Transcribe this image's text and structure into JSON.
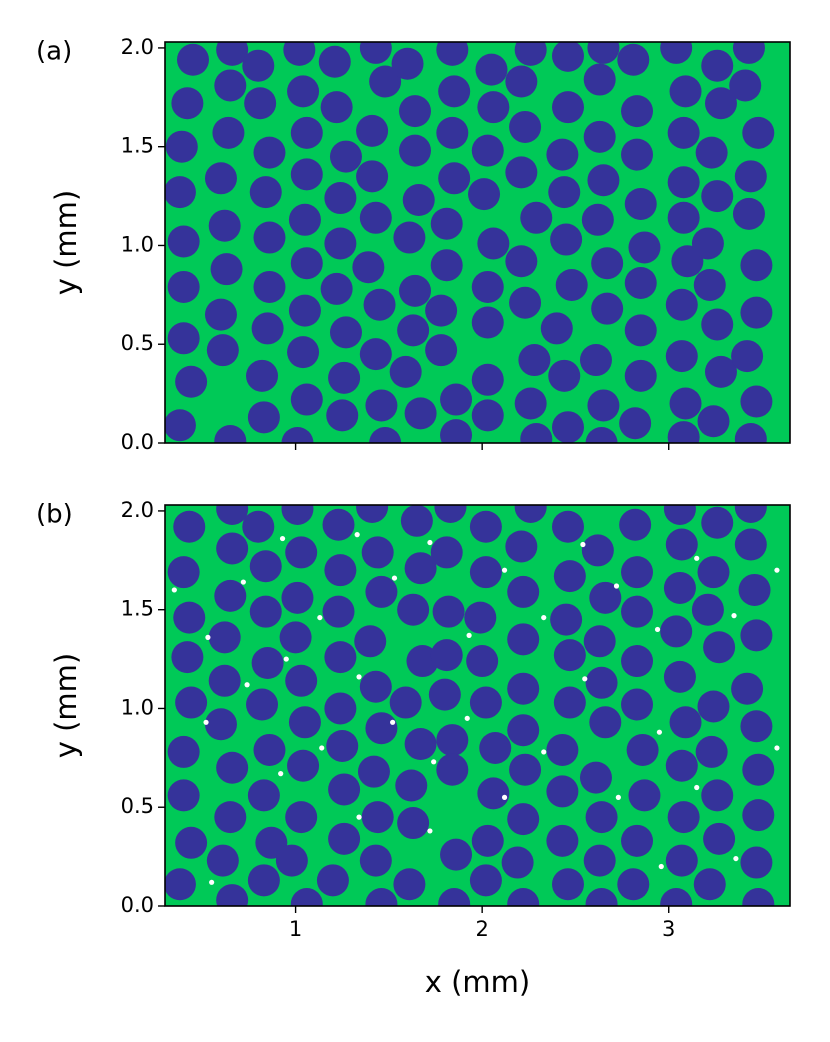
{
  "chart_data": [
    {
      "type": "scatter",
      "panel_label": "(a)",
      "ylabel": "y (mm)",
      "show_xticklabels": false,
      "xlim": [
        0.3,
        3.65
      ],
      "ylim": [
        0,
        2.03
      ],
      "xticks": [
        1,
        2,
        3
      ],
      "yticks": [
        {
          "value": 0,
          "label": "0.0"
        },
        {
          "value": 0.5,
          "label": "0.5"
        },
        {
          "value": 1,
          "label": "1.0"
        },
        {
          "value": 1.5,
          "label": "1.5"
        },
        {
          "value": 2,
          "label": "2.0"
        }
      ],
      "background": "#00c957",
      "series": [
        {
          "color": "#35339a",
          "x": [
            0.45,
            0.42,
            0.39,
            0.38,
            0.4,
            0.4,
            0.4,
            0.44,
            0.38,
            0.66,
            0.65,
            0.64,
            0.6,
            0.62,
            0.63,
            0.6,
            0.61,
            0.65,
            0.8,
            0.81,
            0.86,
            0.84,
            0.86,
            0.86,
            0.85,
            0.82,
            0.83,
            1.02,
            1.04,
            1.06,
            1.06,
            1.05,
            1.06,
            1.05,
            1.04,
            1.06,
            1.01,
            1.21,
            1.22,
            1.27,
            1.24,
            1.24,
            1.22,
            1.27,
            1.26,
            1.25,
            1.43,
            1.48,
            1.41,
            1.41,
            1.43,
            1.39,
            1.45,
            1.43,
            1.46,
            1.48,
            1.6,
            1.64,
            1.64,
            1.66,
            1.61,
            1.64,
            1.63,
            1.59,
            1.67,
            1.84,
            1.85,
            1.84,
            1.85,
            1.81,
            1.81,
            1.78,
            1.78,
            1.86,
            1.86,
            2.05,
            2.06,
            2.03,
            2.01,
            2.06,
            2.03,
            2.03,
            2.03,
            2.03,
            2.26,
            2.21,
            2.23,
            2.21,
            2.29,
            2.21,
            2.23,
            2.28,
            2.26,
            2.29,
            2.46,
            2.46,
            2.43,
            2.44,
            2.45,
            2.48,
            2.4,
            2.44,
            2.46,
            2.65,
            2.63,
            2.63,
            2.65,
            2.62,
            2.67,
            2.67,
            2.61,
            2.65,
            2.64,
            2.81,
            2.83,
            2.83,
            2.85,
            2.87,
            2.85,
            2.85,
            2.85,
            2.82,
            3.04,
            3.09,
            3.08,
            3.08,
            3.08,
            3.1,
            3.07,
            3.07,
            3.09,
            3.08,
            3.26,
            3.28,
            3.23,
            3.26,
            3.21,
            3.22,
            3.26,
            3.28,
            3.24,
            3.43,
            3.41,
            3.48,
            3.44,
            3.43,
            3.47,
            3.47,
            3.42,
            3.47,
            3.44
          ],
          "y": [
            1.94,
            1.72,
            1.5,
            1.27,
            1.02,
            0.79,
            0.53,
            0.31,
            0.09,
            1.99,
            1.81,
            1.57,
            1.34,
            1.1,
            0.88,
            0.65,
            0.47,
            0.01,
            1.91,
            1.72,
            1.47,
            1.27,
            1.04,
            0.79,
            0.58,
            0.34,
            0.13,
            1.99,
            1.78,
            1.57,
            1.36,
            1.13,
            0.91,
            0.67,
            0.46,
            0.22,
            0.0,
            1.93,
            1.7,
            1.45,
            1.24,
            1.01,
            0.78,
            0.56,
            0.33,
            0.14,
            2.0,
            1.83,
            1.58,
            1.35,
            1.14,
            0.89,
            0.7,
            0.45,
            0.19,
            0.0,
            1.92,
            1.68,
            1.48,
            1.23,
            1.04,
            0.77,
            0.57,
            0.36,
            0.15,
            1.99,
            1.78,
            1.57,
            1.34,
            1.11,
            0.9,
            0.67,
            0.47,
            0.22,
            0.04,
            1.89,
            1.7,
            1.48,
            1.26,
            1.01,
            0.79,
            0.61,
            0.32,
            0.14,
            1.99,
            1.83,
            1.6,
            1.37,
            1.14,
            0.92,
            0.71,
            0.42,
            0.2,
            0.02,
            1.96,
            1.7,
            1.46,
            1.27,
            1.03,
            0.8,
            0.58,
            0.34,
            0.08,
            2.0,
            1.84,
            1.55,
            1.33,
            1.13,
            0.91,
            0.68,
            0.42,
            0.19,
            0.0,
            1.94,
            1.68,
            1.46,
            1.21,
            0.99,
            0.81,
            0.57,
            0.34,
            0.1,
            2.0,
            1.78,
            1.57,
            1.32,
            1.14,
            0.92,
            0.7,
            0.44,
            0.2,
            0.03,
            1.91,
            1.72,
            1.47,
            1.25,
            1.01,
            0.8,
            0.6,
            0.36,
            0.11,
            2.0,
            1.81,
            1.57,
            1.35,
            1.16,
            0.9,
            0.66,
            0.44,
            0.21,
            0.02
          ]
        }
      ]
    },
    {
      "type": "scatter",
      "panel_label": "(b)",
      "ylabel": "y (mm)",
      "xlabel": "x (mm)",
      "show_xticklabels": true,
      "xlim": [
        0.3,
        3.65
      ],
      "ylim": [
        0,
        2.03
      ],
      "xticks": [
        1,
        2,
        3
      ],
      "yticks": [
        {
          "value": 0,
          "label": "0.0"
        },
        {
          "value": 0.5,
          "label": "0.5"
        },
        {
          "value": 1,
          "label": "1.0"
        },
        {
          "value": 1.5,
          "label": "1.5"
        },
        {
          "value": 2,
          "label": "2.0"
        }
      ],
      "background": "#00c957",
      "series": [
        {
          "color": "#35339a",
          "x": [
            0.43,
            0.4,
            0.43,
            0.42,
            0.44,
            0.4,
            0.4,
            0.44,
            0.38,
            0.66,
            0.66,
            0.65,
            0.62,
            0.62,
            0.6,
            0.66,
            0.65,
            0.61,
            0.66,
            0.8,
            0.84,
            0.84,
            0.85,
            0.82,
            0.86,
            0.83,
            0.87,
            0.83,
            1.01,
            1.03,
            1.01,
            1.0,
            1.03,
            1.05,
            1.04,
            1.03,
            0.98,
            1.06,
            1.23,
            1.24,
            1.23,
            1.24,
            1.24,
            1.25,
            1.26,
            1.26,
            1.2,
            1.41,
            1.44,
            1.46,
            1.4,
            1.43,
            1.46,
            1.42,
            1.44,
            1.43,
            1.46,
            1.65,
            1.67,
            1.63,
            1.68,
            1.59,
            1.67,
            1.62,
            1.63,
            1.61,
            1.83,
            1.81,
            1.82,
            1.81,
            1.8,
            1.84,
            1.84,
            1.86,
            1.85,
            2.02,
            2.02,
            1.99,
            2.0,
            2.02,
            2.07,
            2.06,
            2.03,
            2.02,
            2.26,
            2.21,
            2.22,
            2.22,
            2.22,
            2.22,
            2.23,
            2.22,
            2.19,
            2.22,
            2.46,
            2.47,
            2.45,
            2.47,
            2.47,
            2.43,
            2.43,
            2.43,
            2.46,
            2.62,
            2.66,
            2.63,
            2.64,
            2.66,
            2.61,
            2.64,
            2.63,
            2.64,
            2.82,
            2.83,
            2.83,
            2.83,
            2.83,
            2.86,
            2.87,
            2.83,
            2.81,
            3.06,
            3.07,
            3.06,
            3.04,
            3.06,
            3.09,
            3.07,
            3.08,
            3.07,
            3.04,
            3.26,
            3.24,
            3.21,
            3.27,
            3.24,
            3.23,
            3.26,
            3.27,
            3.22,
            3.44,
            3.44,
            3.46,
            3.47,
            3.42,
            3.47,
            3.48,
            3.48,
            3.47,
            3.48
          ],
          "y": [
            1.92,
            1.69,
            1.46,
            1.26,
            1.03,
            0.78,
            0.56,
            0.32,
            0.11,
            2.01,
            1.81,
            1.57,
            1.36,
            1.14,
            0.92,
            0.7,
            0.45,
            0.23,
            0.03,
            1.92,
            1.72,
            1.49,
            1.23,
            1.02,
            0.79,
            0.56,
            0.32,
            0.13,
            2.01,
            1.79,
            1.56,
            1.36,
            1.14,
            0.93,
            0.71,
            0.45,
            0.23,
            0.01,
            1.93,
            1.7,
            1.49,
            1.26,
            1.0,
            0.81,
            0.59,
            0.34,
            0.13,
            2.02,
            1.79,
            1.59,
            1.34,
            1.11,
            0.9,
            0.68,
            0.45,
            0.23,
            0.01,
            1.95,
            1.71,
            1.5,
            1.24,
            1.03,
            0.82,
            0.61,
            0.42,
            0.11,
            2.02,
            1.79,
            1.49,
            1.27,
            1.07,
            0.84,
            0.69,
            0.26,
            0.01,
            1.92,
            1.69,
            1.46,
            1.24,
            1.03,
            0.8,
            0.57,
            0.33,
            0.13,
            2.02,
            1.82,
            1.59,
            1.35,
            1.1,
            0.89,
            0.69,
            0.44,
            0.22,
            0.01,
            1.92,
            1.67,
            1.45,
            1.27,
            1.03,
            0.79,
            0.58,
            0.33,
            0.11,
            1.8,
            1.56,
            1.34,
            1.13,
            0.93,
            0.65,
            0.45,
            0.23,
            0.01,
            1.93,
            1.69,
            1.49,
            1.24,
            1.02,
            0.79,
            0.56,
            0.33,
            0.11,
            2.01,
            1.83,
            1.61,
            1.39,
            1.16,
            0.93,
            0.71,
            0.45,
            0.23,
            0.01,
            1.94,
            1.69,
            1.5,
            1.31,
            1.01,
            0.78,
            0.56,
            0.34,
            0.11,
            2.02,
            1.83,
            1.6,
            1.37,
            1.1,
            0.91,
            0.69,
            0.46,
            0.22,
            0.01
          ]
        },
        {
          "color": "#ffffff",
          "x": [
            0.35,
            0.53,
            0.52,
            0.72,
            0.74,
            0.93,
            0.95,
            0.92,
            1.13,
            1.14,
            1.33,
            1.34,
            1.34,
            1.53,
            1.52,
            1.72,
            1.74,
            1.93,
            1.92,
            2.12,
            2.12,
            2.33,
            2.33,
            2.54,
            2.55,
            2.72,
            2.73,
            2.94,
            2.95,
            3.15,
            3.15,
            3.35,
            3.36,
            3.58,
            3.58,
            0.55,
            1.72,
            2.96
          ],
          "y": [
            1.6,
            1.36,
            0.93,
            1.64,
            1.12,
            1.86,
            1.25,
            0.67,
            1.46,
            0.8,
            1.88,
            1.16,
            0.45,
            1.66,
            0.93,
            1.84,
            0.73,
            1.37,
            0.95,
            1.7,
            0.55,
            1.46,
            0.78,
            1.83,
            1.15,
            1.62,
            0.55,
            1.4,
            0.88,
            1.76,
            0.6,
            1.47,
            0.24,
            1.7,
            0.8,
            0.12,
            0.38,
            0.2
          ]
        }
      ]
    }
  ]
}
